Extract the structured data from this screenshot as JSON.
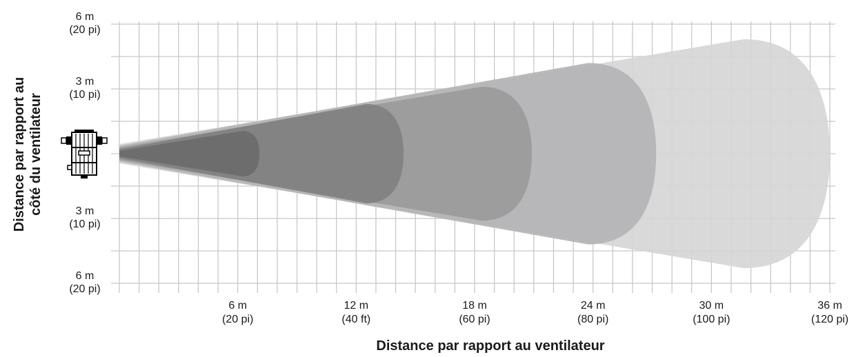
{
  "chart_data": {
    "type": "area",
    "title": "",
    "xlabel": "Distance par rapport au ventilateur",
    "ylabel": [
      "Distance par rapport au",
      "côté du ventilateur"
    ],
    "xlim": [
      0,
      36
    ],
    "ylim": [
      -6,
      6
    ],
    "grid": true,
    "x_ticks": [
      {
        "value": 6,
        "line1": "6 m",
        "line2": "(20 pi)"
      },
      {
        "value": 12,
        "line1": "12 m",
        "line2": "(40 ft)"
      },
      {
        "value": 18,
        "line1": "18 m",
        "line2": "(60 pi)"
      },
      {
        "value": 24,
        "line1": "24 m",
        "line2": "(80 pi)"
      },
      {
        "value": 30,
        "line1": "30 m",
        "line2": "(100 pi)"
      },
      {
        "value": 36,
        "line1": "36 m",
        "line2": "(120 pi)"
      }
    ],
    "y_ticks": [
      {
        "value": 6,
        "line1": "6 m",
        "line2": "(20 pi)"
      },
      {
        "value": 3,
        "line1": "3 m",
        "line2": "(10 pi)"
      },
      {
        "value": -3,
        "line1": "3 m",
        "line2": "(10 pi)"
      },
      {
        "value": -6,
        "line1": "6 m",
        "line2": "(20 pi)"
      }
    ],
    "zones": [
      {
        "reach": 36,
        "half_width": 5.3,
        "color": "#d6d6d6"
      },
      {
        "reach": 27.2,
        "half_width": 4.2,
        "color": "#b4b4b6"
      },
      {
        "reach": 20.9,
        "half_width": 3.1,
        "color": "#9a9a9b"
      },
      {
        "reach": 14.4,
        "half_width": 2.3,
        "color": "#818181"
      },
      {
        "reach": 7.1,
        "half_width": 1.05,
        "color": "#6b6b6c"
      }
    ],
    "fan_icon": "fan-unit-icon"
  }
}
